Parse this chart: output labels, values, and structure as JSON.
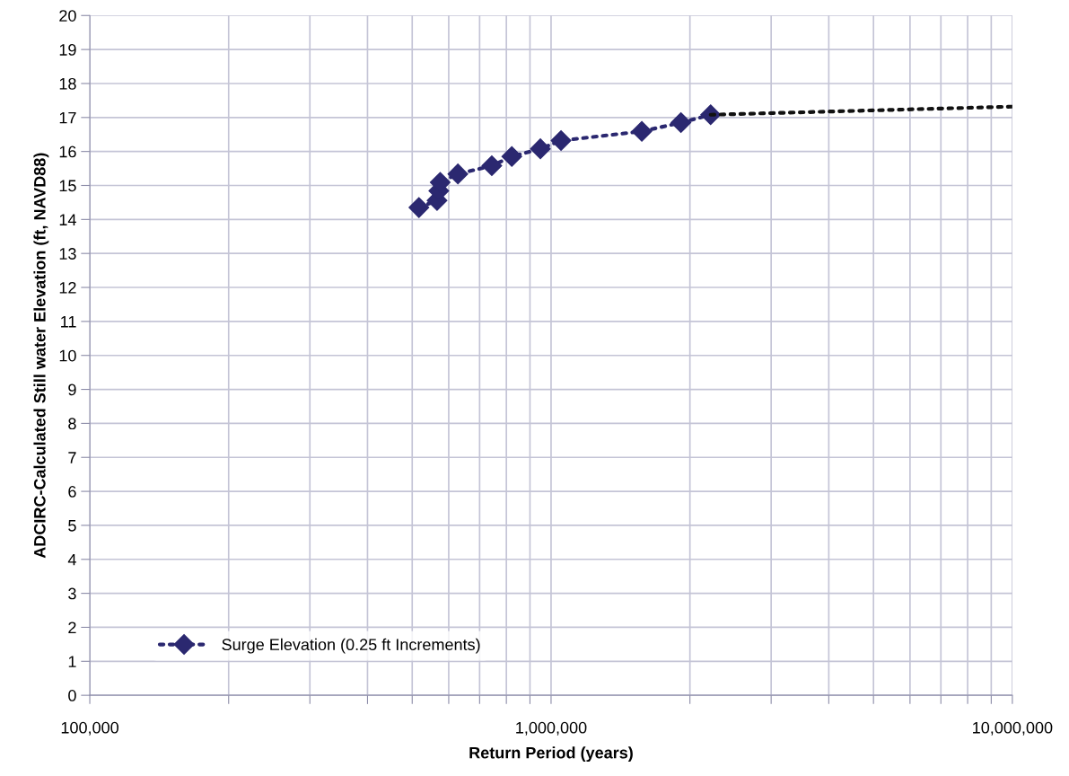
{
  "chart_data": {
    "type": "line",
    "xlabel": "Return Period (years)",
    "ylabel": "ADCIRC-Calculated Still water Elevation (ft, NAVD88)",
    "log": "x",
    "grid": true,
    "legend": "bottom left",
    "line_style": "dotted",
    "xlim": [
      100000,
      10000000
    ],
    "ylim": [
      0,
      20
    ],
    "xticks": [
      {
        "value": 100000,
        "label": "100,000"
      },
      {
        "value": 200000,
        "label": null
      },
      {
        "value": 300000,
        "label": null
      },
      {
        "value": 400000,
        "label": null
      },
      {
        "value": 500000,
        "label": null
      },
      {
        "value": 600000,
        "label": null
      },
      {
        "value": 700000,
        "label": null
      },
      {
        "value": 800000,
        "label": null
      },
      {
        "value": 900000,
        "label": null
      },
      {
        "value": 1000000,
        "label": "1,000,000"
      },
      {
        "value": 2000000,
        "label": null
      },
      {
        "value": 3000000,
        "label": null
      },
      {
        "value": 4000000,
        "label": null
      },
      {
        "value": 5000000,
        "label": null
      },
      {
        "value": 6000000,
        "label": null
      },
      {
        "value": 7000000,
        "label": null
      },
      {
        "value": 8000000,
        "label": null
      },
      {
        "value": 9000000,
        "label": null
      },
      {
        "value": 10000000,
        "label": "10,000,000"
      }
    ],
    "yticks": [
      0,
      1,
      2,
      3,
      4,
      5,
      6,
      7,
      8,
      9,
      10,
      11,
      12,
      13,
      14,
      15,
      16,
      17,
      18,
      19,
      20
    ],
    "series": [
      {
        "name": "Surge Elevation (0.25 ft Increments)",
        "color": "#2b2870",
        "marker": "diamond",
        "x": [
          517000,
          566000,
          571000,
          575000,
          628000,
          744000,
          822000,
          948000,
          1051000,
          1573000,
          1912000,
          2218000
        ],
        "values": [
          14.35,
          14.56,
          14.84,
          15.09,
          15.34,
          15.58,
          15.85,
          16.08,
          16.32,
          16.59,
          16.85,
          17.08
        ]
      },
      {
        "color": "#111111",
        "marker": "none",
        "x": [
          2218000,
          10000000
        ],
        "values": [
          17.08,
          17.32
        ]
      }
    ]
  }
}
